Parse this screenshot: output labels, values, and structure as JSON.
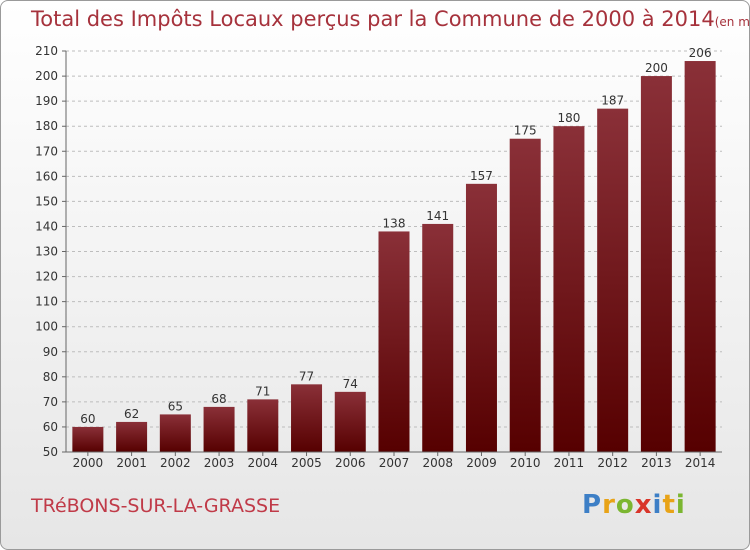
{
  "title": "Total des Impôts Locaux perçus par la Commune de 2000 à 2014",
  "title_unit": "(en milliers d'€)",
  "commune": "TRéBONS-SUR-LA-GRASSE",
  "logo": {
    "letters": [
      "P",
      "r",
      "o",
      "x",
      "i",
      "t",
      "i"
    ],
    "colors": [
      "#3d7fc6",
      "#e8a317",
      "#7bb631",
      "#d9352a",
      "#3d7fc6",
      "#e8a317",
      "#7bb631"
    ]
  },
  "colors": {
    "bar_top": "#8a3038",
    "bar_bottom": "#560000",
    "title": "#a6323c"
  },
  "chart_data": {
    "type": "bar",
    "title": "Total des Impôts Locaux perçus par la Commune de 2000 à 2014",
    "ylabel": "",
    "xlabel": "",
    "categories": [
      "2000",
      "2001",
      "2002",
      "2003",
      "2004",
      "2005",
      "2006",
      "2007",
      "2008",
      "2009",
      "2010",
      "2011",
      "2012",
      "2013",
      "2014"
    ],
    "values": [
      60,
      62,
      65,
      68,
      71,
      77,
      74,
      138,
      141,
      157,
      175,
      180,
      187,
      200,
      206
    ],
    "ylim": [
      50,
      210
    ],
    "yticks": [
      50,
      60,
      70,
      80,
      90,
      100,
      110,
      120,
      130,
      140,
      150,
      160,
      170,
      180,
      190,
      200,
      210
    ],
    "grid": true
  }
}
